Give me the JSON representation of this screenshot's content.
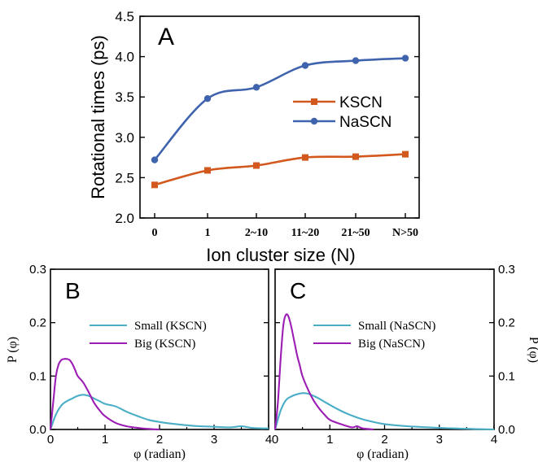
{
  "chart_data": [
    {
      "panel": "A",
      "type": "line",
      "ylabel": "Rotational times (ps)",
      "xlabel": "Ion cluster size (N)",
      "categories": [
        "0",
        "1",
        "2~10",
        "11~20",
        "21~50",
        "N>50"
      ],
      "ylim": [
        2.0,
        4.5
      ],
      "yticks": [
        "2.0",
        "2.5",
        "3.0",
        "3.5",
        "4.0",
        "4.5"
      ],
      "legend_position": "right",
      "series": [
        {
          "name": "KSCN",
          "color": "#d2581e",
          "marker": "square",
          "values": [
            2.41,
            2.59,
            2.65,
            2.75,
            2.76,
            2.79
          ]
        },
        {
          "name": "NaSCN",
          "color": "#3f63ad",
          "marker": "circle",
          "values": [
            2.72,
            3.48,
            3.62,
            3.89,
            3.95,
            3.98
          ]
        }
      ]
    },
    {
      "panel": "B",
      "type": "line",
      "xlabel": "φ (radian)",
      "ylabel": "P (φ)",
      "xlim": [
        0,
        4
      ],
      "ylim": [
        0,
        0.3
      ],
      "xticks": [
        "0",
        "1",
        "2",
        "3",
        "4"
      ],
      "yticks": [
        "0.0",
        "0.1",
        "0.2",
        "0.3"
      ],
      "series": [
        {
          "name": "Small (KSCN)",
          "color": "#4aaec6",
          "x": [
            0,
            0.1,
            0.2,
            0.3,
            0.4,
            0.5,
            0.6,
            0.7,
            0.8,
            0.9,
            1.0,
            1.2,
            1.4,
            1.6,
            1.8,
            2.0,
            2.3,
            2.6,
            3.0,
            3.3,
            3.5,
            3.7,
            3.9,
            4.0
          ],
          "values": [
            0.0,
            0.028,
            0.045,
            0.053,
            0.058,
            0.063,
            0.065,
            0.063,
            0.058,
            0.053,
            0.048,
            0.043,
            0.033,
            0.025,
            0.018,
            0.014,
            0.01,
            0.007,
            0.005,
            0.004,
            0.006,
            0.003,
            0.002,
            0.002
          ]
        },
        {
          "name": "Big (KSCN)",
          "color": "#9c1db4",
          "x": [
            0,
            0.05,
            0.1,
            0.15,
            0.2,
            0.25,
            0.3,
            0.35,
            0.4,
            0.45,
            0.5,
            0.6,
            0.7,
            0.8,
            0.9,
            1.0,
            1.2,
            1.4,
            1.6,
            1.8,
            2.0
          ],
          "values": [
            0.0,
            0.05,
            0.1,
            0.122,
            0.13,
            0.132,
            0.132,
            0.13,
            0.123,
            0.112,
            0.1,
            0.088,
            0.07,
            0.05,
            0.036,
            0.025,
            0.012,
            0.006,
            0.003,
            0.001,
            0.0
          ]
        }
      ]
    },
    {
      "panel": "C",
      "type": "line",
      "xlabel": "φ (radian)",
      "ylabel": "P (φ)",
      "xlim": [
        0,
        4
      ],
      "ylim": [
        0,
        0.3
      ],
      "xticks": [
        "0",
        "1",
        "2",
        "3",
        "4"
      ],
      "yticks": [
        "0.0",
        "0.1",
        "0.2",
        "0.3"
      ],
      "series": [
        {
          "name": "Small (NaSCN)",
          "color": "#4aaec6",
          "x": [
            0,
            0.1,
            0.2,
            0.3,
            0.4,
            0.5,
            0.6,
            0.7,
            0.8,
            0.9,
            1.0,
            1.2,
            1.4,
            1.6,
            1.8,
            2.0,
            2.3,
            2.6,
            3.0,
            3.3,
            3.6,
            4.0
          ],
          "values": [
            0.0,
            0.035,
            0.055,
            0.062,
            0.066,
            0.068,
            0.067,
            0.063,
            0.058,
            0.052,
            0.046,
            0.035,
            0.026,
            0.019,
            0.014,
            0.01,
            0.007,
            0.005,
            0.003,
            0.002,
            0.001,
            0.0
          ]
        },
        {
          "name": "Big (NaSCN)",
          "color": "#9c1db4",
          "x": [
            0,
            0.05,
            0.1,
            0.15,
            0.2,
            0.25,
            0.3,
            0.35,
            0.4,
            0.45,
            0.5,
            0.6,
            0.7,
            0.8,
            0.9,
            1.0,
            1.2,
            1.4,
            1.5,
            1.6,
            1.8
          ],
          "values": [
            0.0,
            0.05,
            0.13,
            0.195,
            0.215,
            0.21,
            0.19,
            0.165,
            0.14,
            0.12,
            0.1,
            0.075,
            0.055,
            0.04,
            0.028,
            0.018,
            0.01,
            0.004,
            0.006,
            0.002,
            0.0
          ]
        }
      ]
    }
  ]
}
